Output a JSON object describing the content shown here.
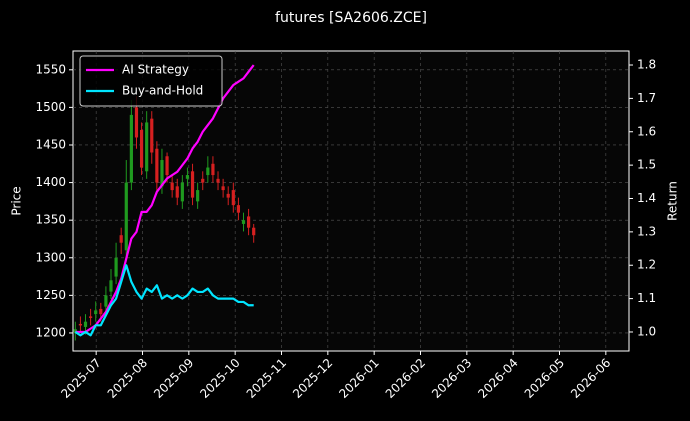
{
  "chart_data": {
    "type": "candlestick",
    "title": "futures [SA2606.ZCE]",
    "y_label": "Price",
    "y2_label": "Return",
    "x": [
      -0.45,
      -0.34,
      -0.23,
      -0.12,
      -0.01,
      0.1,
      0.21,
      0.32,
      0.43,
      0.54,
      0.65,
      0.76,
      0.87,
      0.98,
      1.09,
      1.2,
      1.31,
      1.42,
      1.53,
      1.64,
      1.75,
      1.86,
      1.97,
      2.08,
      2.19,
      2.3,
      2.41,
      2.52,
      2.63,
      2.74,
      2.85,
      2.96,
      3.07,
      3.18,
      3.29,
      3.4
    ],
    "open": [
      1200,
      1212,
      1208,
      1222,
      1225,
      1232,
      1235,
      1255,
      1275,
      1330,
      1310,
      1400,
      1500,
      1470,
      1415,
      1485,
      1445,
      1395,
      1435,
      1400,
      1395,
      1375,
      1405,
      1415,
      1375,
      1405,
      1410,
      1425,
      1405,
      1395,
      1385,
      1390,
      1370,
      1345,
      1355,
      1340
    ],
    "high": [
      1215,
      1222,
      1225,
      1232,
      1242,
      1240,
      1262,
      1285,
      1320,
      1340,
      1430,
      1510,
      1515,
      1480,
      1495,
      1495,
      1455,
      1445,
      1440,
      1410,
      1405,
      1410,
      1420,
      1425,
      1400,
      1415,
      1435,
      1435,
      1415,
      1405,
      1395,
      1400,
      1380,
      1360,
      1365,
      1345
    ],
    "low": [
      1190,
      1200,
      1198,
      1210,
      1215,
      1215,
      1225,
      1245,
      1265,
      1305,
      1300,
      1390,
      1445,
      1410,
      1405,
      1425,
      1385,
      1385,
      1400,
      1380,
      1370,
      1365,
      1395,
      1370,
      1365,
      1390,
      1400,
      1400,
      1390,
      1380,
      1370,
      1360,
      1350,
      1335,
      1330,
      1320
    ],
    "close": [
      1205,
      1210,
      1215,
      1220,
      1230,
      1225,
      1250,
      1270,
      1300,
      1320,
      1400,
      1490,
      1460,
      1420,
      1480,
      1440,
      1400,
      1430,
      1410,
      1390,
      1380,
      1400,
      1410,
      1380,
      1390,
      1400,
      1420,
      1410,
      1400,
      1390,
      1380,
      1370,
      1360,
      1350,
      1340,
      1330
    ],
    "up_color": "#1f9a1f",
    "down_color": "#d62020",
    "series": [
      {
        "name": "AI Strategy",
        "color": "#ff00ff",
        "axis": "y2",
        "values": [
          1.0,
          1.0,
          1.0,
          1.01,
          1.02,
          1.04,
          1.06,
          1.09,
          1.12,
          1.16,
          1.22,
          1.28,
          1.3,
          1.36,
          1.36,
          1.38,
          1.42,
          1.44,
          1.46,
          1.47,
          1.48,
          1.5,
          1.52,
          1.55,
          1.57,
          1.6,
          1.62,
          1.64,
          1.67,
          1.7,
          1.72,
          1.74,
          1.75,
          1.76,
          1.78,
          1.8
        ]
      },
      {
        "name": "Buy-and-Hold",
        "color": "#00e5ff",
        "axis": "y2",
        "values": [
          1.0,
          0.99,
          1.0,
          0.99,
          1.02,
          1.02,
          1.05,
          1.08,
          1.1,
          1.15,
          1.2,
          1.15,
          1.12,
          1.1,
          1.13,
          1.12,
          1.14,
          1.1,
          1.11,
          1.1,
          1.11,
          1.1,
          1.11,
          1.13,
          1.12,
          1.12,
          1.13,
          1.11,
          1.1,
          1.1,
          1.1,
          1.1,
          1.09,
          1.09,
          1.08,
          1.08
        ]
      }
    ],
    "xlim": [
      -0.5,
      11.5
    ],
    "xticks": [
      {
        "value": 0,
        "label": "2025-07"
      },
      {
        "value": 1,
        "label": "2025-08"
      },
      {
        "value": 2,
        "label": "2025-09"
      },
      {
        "value": 3,
        "label": "2025-10"
      },
      {
        "value": 4,
        "label": "2025-11"
      },
      {
        "value": 5,
        "label": "2025-12"
      },
      {
        "value": 6,
        "label": "2026-01"
      },
      {
        "value": 7,
        "label": "2026-02"
      },
      {
        "value": 8,
        "label": "2026-03"
      },
      {
        "value": 9,
        "label": "2026-04"
      },
      {
        "value": 10,
        "label": "2026-05"
      },
      {
        "value": 11,
        "label": "2026-06"
      }
    ],
    "ylim": [
      1176,
      1575
    ],
    "yticks": [
      1200,
      1250,
      1300,
      1350,
      1400,
      1450,
      1500,
      1550
    ],
    "y2lim": [
      0.943,
      1.842
    ],
    "y2ticks": [
      {
        "value": 1,
        "label": "1.0"
      },
      1.1,
      1.2,
      1.3,
      1.4,
      1.5,
      1.6,
      1.7,
      1.8
    ],
    "grid": true,
    "legend": "upper-left"
  }
}
